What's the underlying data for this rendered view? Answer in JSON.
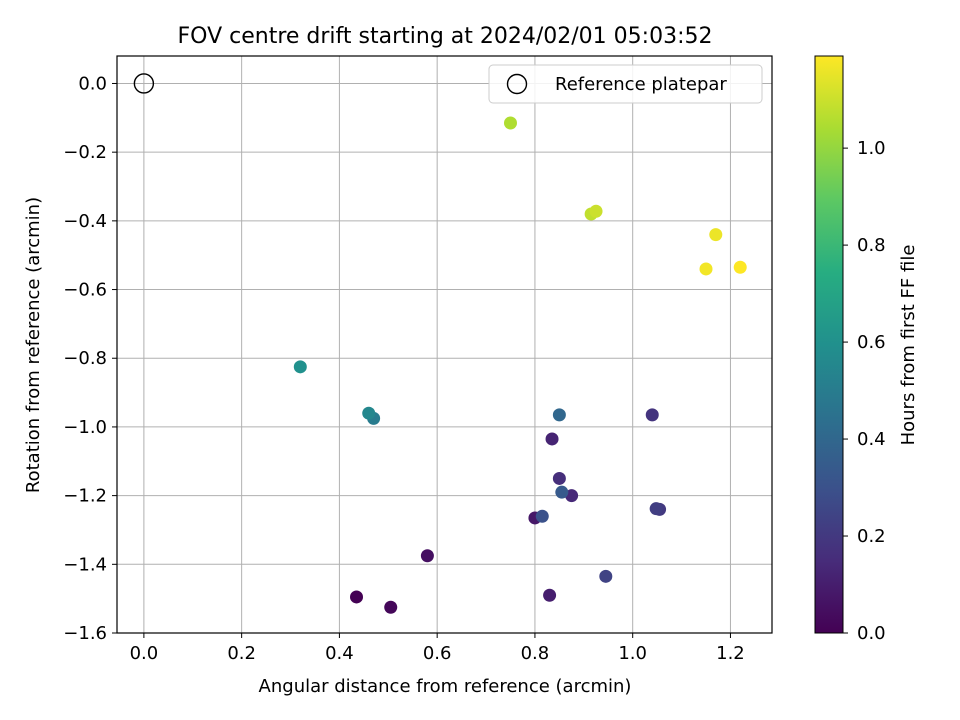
{
  "chart_data": {
    "type": "scatter",
    "title": "FOV centre drift starting at 2024/02/01 05:03:52",
    "xlabel": "Angular distance from reference (arcmin)",
    "ylabel": "Rotation from reference (arcmin)",
    "xlim": [
      -0.055,
      1.285
    ],
    "ylim": [
      -1.6,
      0.08
    ],
    "xticks": [
      0.0,
      0.2,
      0.4,
      0.6,
      0.8,
      1.0,
      1.2
    ],
    "xtick_labels": [
      "0.0",
      "0.2",
      "0.4",
      "0.6",
      "0.8",
      "1.0",
      "1.2"
    ],
    "yticks": [
      0.0,
      -0.2,
      -0.4,
      -0.6,
      -0.8,
      -1.0,
      -1.2,
      -1.4,
      -1.6
    ],
    "ytick_labels": [
      "0.0",
      "−0.2",
      "−0.4",
      "−0.6",
      "−0.8",
      "−1.0",
      "−1.2",
      "−1.4",
      "−1.6"
    ],
    "grid": true,
    "legend": {
      "placement": "top-right",
      "entries": [
        {
          "label": "Reference platepar",
          "marker": "open-circle"
        }
      ]
    },
    "reference_point": {
      "x": 0.0,
      "y": 0.0
    },
    "colorbar": {
      "label": "Hours from first FF file",
      "colormap": "viridis",
      "range": [
        0.0,
        1.19
      ],
      "ticks": [
        0.0,
        0.2,
        0.4,
        0.6,
        0.8,
        1.0
      ],
      "tick_labels": [
        "0.0",
        "0.2",
        "0.4",
        "0.6",
        "0.8",
        "1.0"
      ]
    },
    "points": [
      {
        "x": 0.435,
        "y": -1.495,
        "c": 0.0
      },
      {
        "x": 0.505,
        "y": -1.525,
        "c": 0.02
      },
      {
        "x": 0.58,
        "y": -1.375,
        "c": 0.05
      },
      {
        "x": 0.8,
        "y": -1.265,
        "c": 0.08
      },
      {
        "x": 0.83,
        "y": -1.49,
        "c": 0.1
      },
      {
        "x": 0.835,
        "y": -1.035,
        "c": 0.12
      },
      {
        "x": 0.875,
        "y": -1.2,
        "c": 0.14
      },
      {
        "x": 0.85,
        "y": -1.15,
        "c": 0.16
      },
      {
        "x": 1.04,
        "y": -0.965,
        "c": 0.18
      },
      {
        "x": 1.055,
        "y": -1.24,
        "c": 0.2
      },
      {
        "x": 1.048,
        "y": -1.238,
        "c": 0.22
      },
      {
        "x": 0.945,
        "y": -1.435,
        "c": 0.24
      },
      {
        "x": 0.815,
        "y": -1.26,
        "c": 0.3
      },
      {
        "x": 0.855,
        "y": -1.19,
        "c": 0.34
      },
      {
        "x": 0.85,
        "y": -0.965,
        "c": 0.4
      },
      {
        "x": 0.47,
        "y": -0.975,
        "c": 0.5
      },
      {
        "x": 0.46,
        "y": -0.96,
        "c": 0.55
      },
      {
        "x": 0.32,
        "y": -0.825,
        "c": 0.6
      },
      {
        "x": 0.75,
        "y": -0.115,
        "c": 1.05
      },
      {
        "x": 0.915,
        "y": -0.38,
        "c": 1.08
      },
      {
        "x": 0.925,
        "y": -0.372,
        "c": 1.1
      },
      {
        "x": 1.17,
        "y": -0.44,
        "c": 1.16
      },
      {
        "x": 1.15,
        "y": -0.54,
        "c": 1.17
      },
      {
        "x": 1.22,
        "y": -0.535,
        "c": 1.19
      }
    ]
  }
}
